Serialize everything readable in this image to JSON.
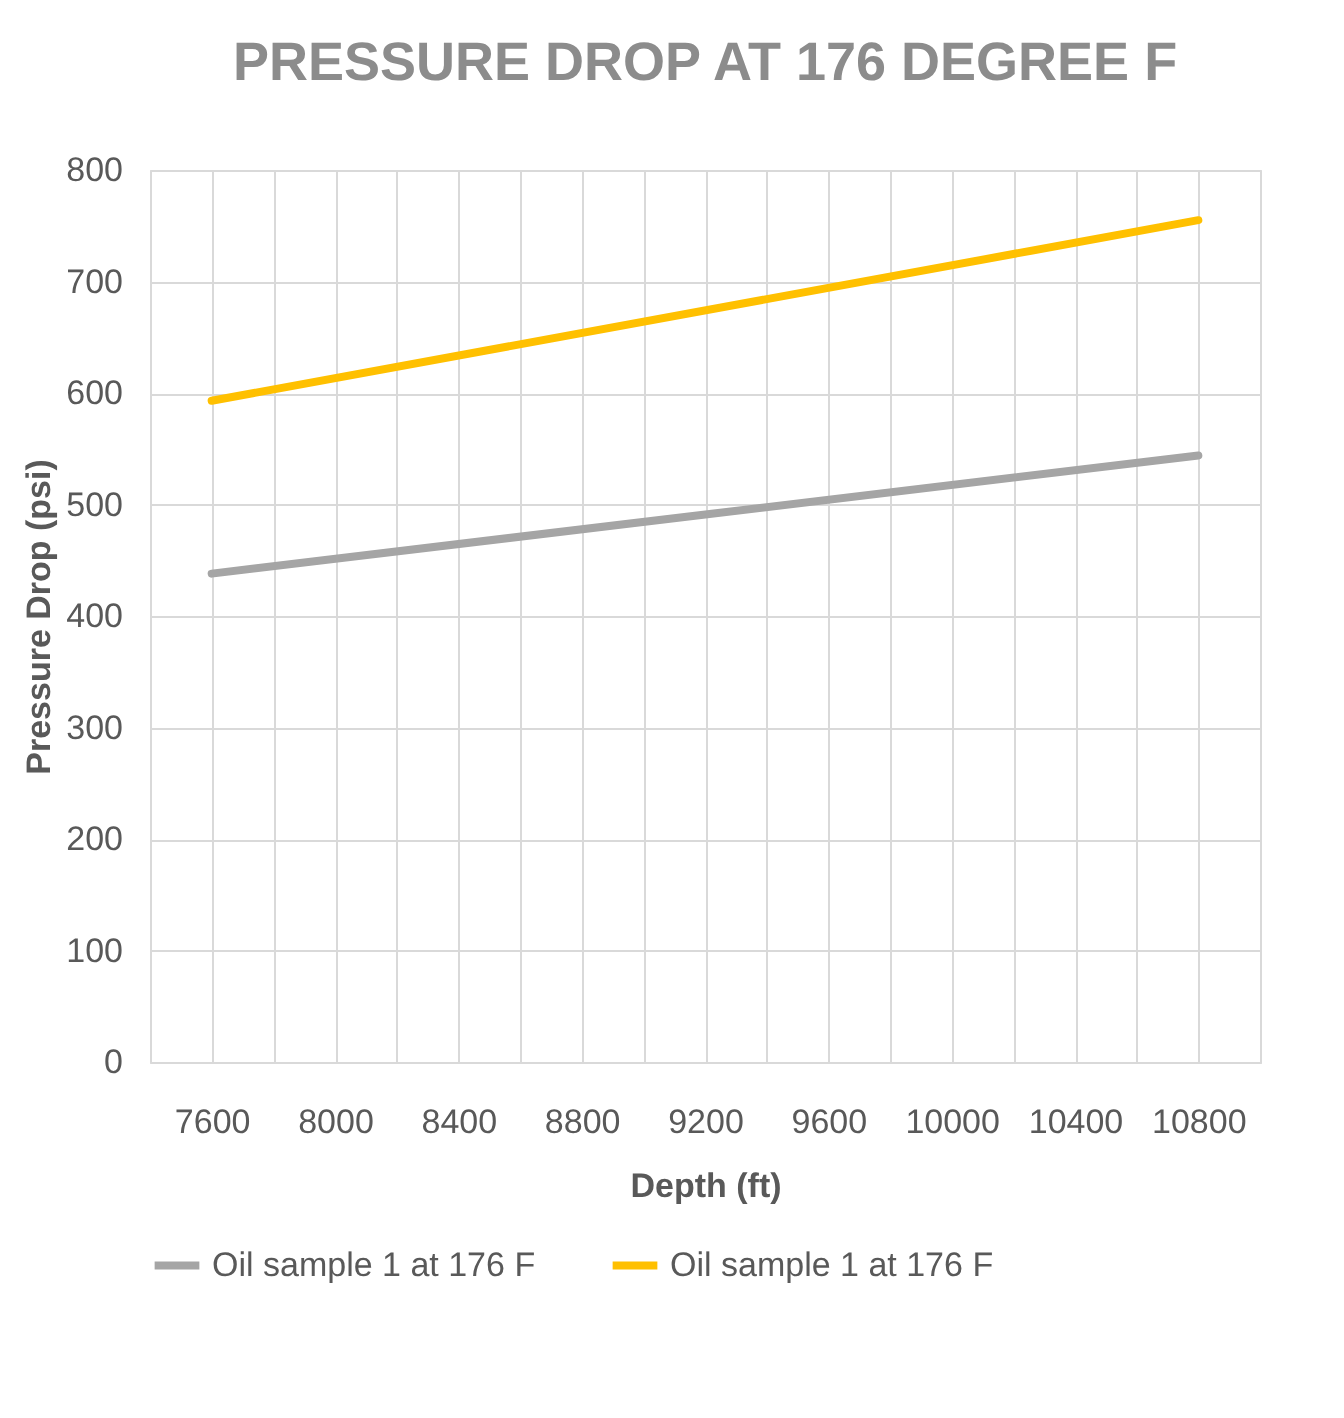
{
  "chart_data": {
    "type": "line",
    "title": "PRESSURE DROP AT 176 DEGREE F",
    "xlabel": "Depth (ft)",
    "ylabel": "Pressure Drop (psi)",
    "x": [
      7600,
      10800
    ],
    "series": [
      {
        "name": "Oil sample 1 at 176 F",
        "color": "#a5a5a5",
        "values": [
          438,
          544
        ]
      },
      {
        "name": "Oil sample 1 at 176 F",
        "color": "#ffc000",
        "values": [
          593,
          755
        ]
      }
    ],
    "xlim": [
      7400,
      11000
    ],
    "xticks": [
      {
        "value": 7400,
        "label": null
      },
      7600,
      {
        "value": 7800,
        "label": null
      },
      8000,
      {
        "value": 8200,
        "label": null
      },
      8400,
      {
        "value": 8600,
        "label": null
      },
      8800,
      {
        "value": 9000,
        "label": null
      },
      9200,
      {
        "value": 9400,
        "label": null
      },
      9600,
      {
        "value": 9800,
        "label": null
      },
      10000,
      {
        "value": 10200,
        "label": null
      },
      10400,
      {
        "value": 10600,
        "label": null
      },
      10800,
      {
        "value": 11000,
        "label": null
      }
    ],
    "ylim": [
      0,
      800
    ],
    "yticks": [
      0,
      100,
      200,
      300,
      400,
      500,
      600,
      700,
      800
    ],
    "grid": true,
    "legend": "bottom",
    "marker": "none",
    "line_style": "solid"
  }
}
